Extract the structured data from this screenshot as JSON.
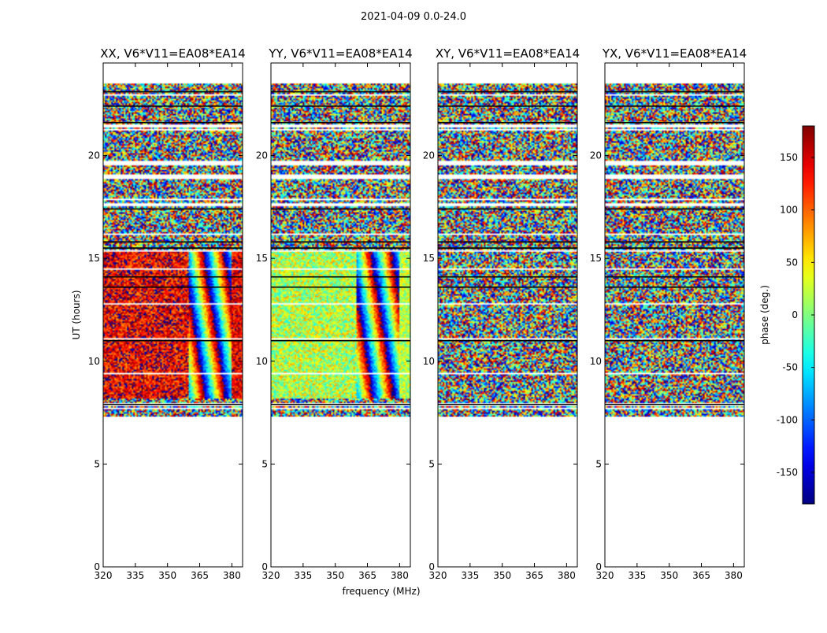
{
  "figure": {
    "suptitle": "2021-04-09 0.0-24.0"
  },
  "chart_data": {
    "type": "heatmap",
    "xlabel": "frequency (MHz)",
    "ylabel": "UT (hours)",
    "xlim": [
      320,
      385
    ],
    "ylim": [
      0,
      24.5
    ],
    "xticks": [
      320,
      335,
      350,
      365,
      380
    ],
    "yticks": [
      0,
      5,
      10,
      15,
      20
    ],
    "data_time_range": [
      7.3,
      23.5
    ],
    "colorbar": {
      "label": "phase (deg.)",
      "range": [
        -180,
        180
      ],
      "ticks": [
        -150,
        -100,
        -50,
        0,
        50,
        100,
        150
      ],
      "colormap": "jet"
    },
    "panels": [
      {
        "title": "XX, V6*V11=EA08*EA14",
        "pattern": "coherent-red-blue",
        "dominant_phase_deg": 140,
        "coherent_freq_range": [
          320,
          360
        ]
      },
      {
        "title": "YY, V6*V11=EA08*EA14",
        "pattern": "coherent-green-yellow",
        "dominant_phase_deg": 20,
        "coherent_freq_range": [
          320,
          360
        ]
      },
      {
        "title": "XY, V6*V11=EA08*EA14",
        "pattern": "noise",
        "dominant_phase_deg": null,
        "coherent_freq_range": null
      },
      {
        "title": "YX, V6*V11=EA08*EA14",
        "pattern": "noise",
        "dominant_phase_deg": null,
        "coherent_freq_range": null
      }
    ]
  }
}
